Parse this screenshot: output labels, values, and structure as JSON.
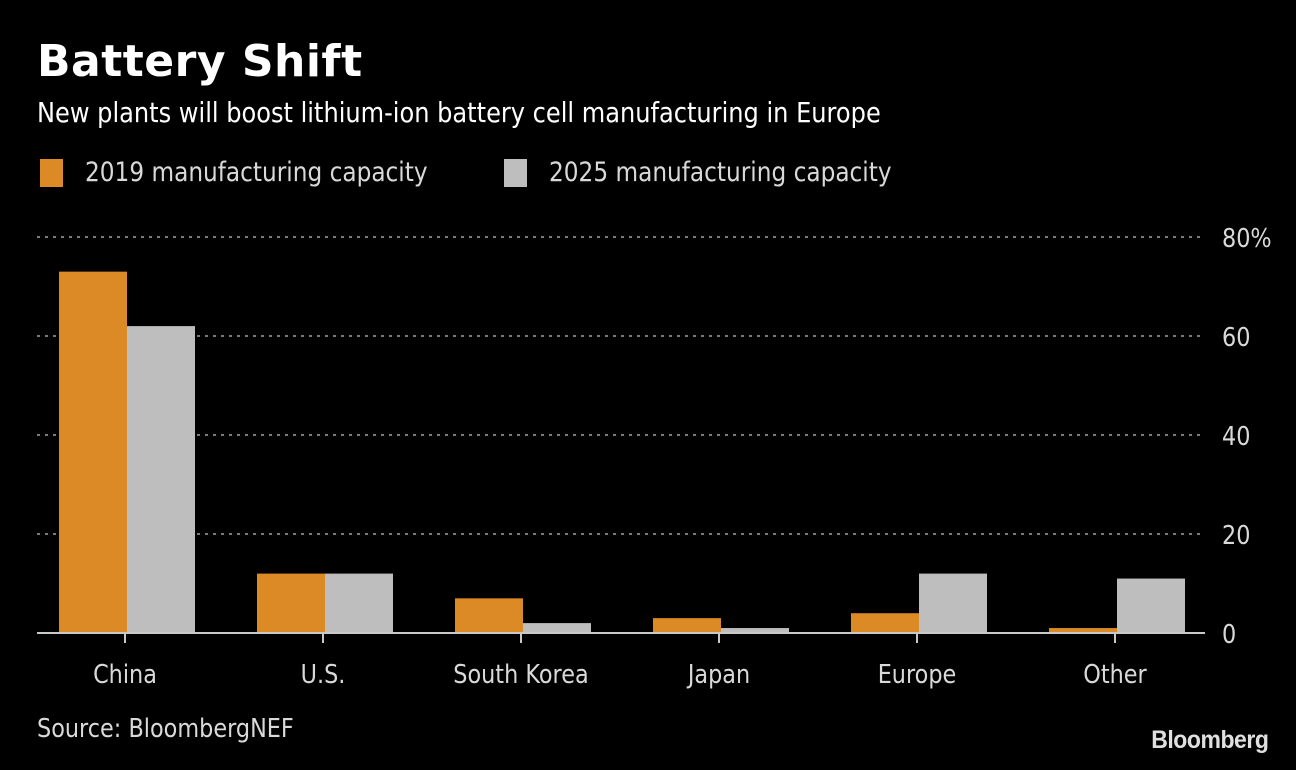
{
  "header": {
    "title": "Battery Shift",
    "subtitle": "New plants will boost lithium-ion battery cell manufacturing in Europe"
  },
  "legend": [
    {
      "label": "2019 manufacturing capacity",
      "color": "#dc8a25"
    },
    {
      "label": "2025 manufacturing capacity",
      "color": "#bebebe"
    }
  ],
  "footer": {
    "source": "Source: BloombergNEF",
    "logo": "Bloomberg"
  },
  "chart_data": {
    "type": "bar",
    "title": "Battery Shift",
    "subtitle": "New plants will boost lithium-ion battery cell manufacturing in Europe",
    "categories": [
      "China",
      "U.S.",
      "South Korea",
      "Japan",
      "Europe",
      "Other"
    ],
    "series": [
      {
        "name": "2019 manufacturing capacity",
        "color": "#dc8a25",
        "values": [
          73,
          12,
          7,
          3,
          4,
          1
        ]
      },
      {
        "name": "2025 manufacturing capacity",
        "color": "#bebebe",
        "values": [
          62,
          12,
          2,
          1,
          12,
          11
        ]
      }
    ],
    "xlabel": "",
    "ylabel": "",
    "ylim": [
      0,
      80
    ],
    "yticks": [
      0,
      20,
      40,
      60,
      80
    ],
    "ytick_labels": [
      "0",
      "20",
      "40",
      "60",
      "80%"
    ],
    "grid": true,
    "yaxis_side": "right",
    "legend_position": "top-left",
    "colors": {
      "background": "#000000",
      "grid": "#7a7a7a",
      "axis": "#c8c8c8",
      "text": "#d9d9d9"
    }
  }
}
